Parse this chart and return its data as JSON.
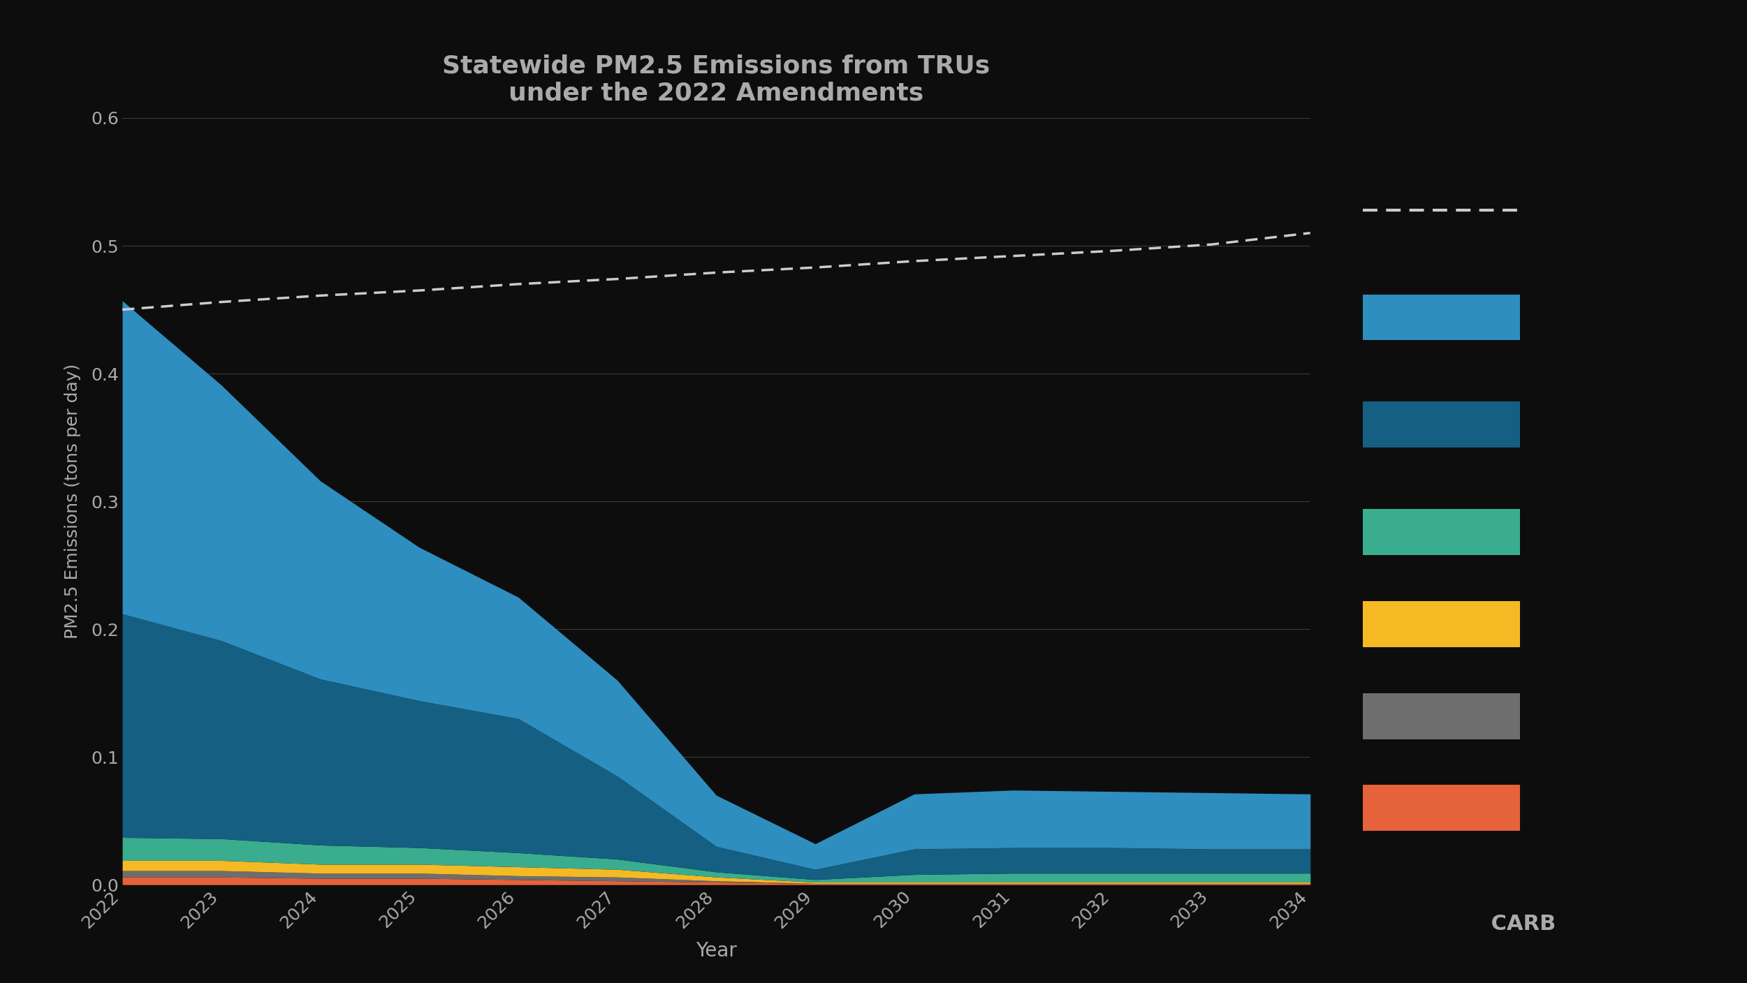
{
  "title": "Statewide PM2.5 Emissions from TRUs\nunder the 2022 Amendments",
  "xlabel": "Year",
  "ylabel": "PM2.5 Emissions (tons per day)",
  "background_color": "#0d0d0d",
  "text_color": "#aaaaaa",
  "grid_color": "#3a3a3a",
  "years": [
    2022,
    2023,
    2024,
    2025,
    2026,
    2027,
    2028,
    2029,
    2030,
    2031,
    2032,
    2033,
    2034
  ],
  "baseline": [
    0.45,
    0.456,
    0.461,
    0.465,
    0.47,
    0.474,
    0.479,
    0.483,
    0.488,
    0.492,
    0.496,
    0.501,
    0.51
  ],
  "series_order": [
    "orange",
    "gray",
    "yellow",
    "teal",
    "dark_blue",
    "light_blue"
  ],
  "series": {
    "light_blue": [
      0.245,
      0.2,
      0.155,
      0.12,
      0.095,
      0.075,
      0.04,
      0.02,
      0.043,
      0.045,
      0.044,
      0.044,
      0.043
    ],
    "dark_blue": [
      0.175,
      0.155,
      0.13,
      0.115,
      0.105,
      0.065,
      0.02,
      0.008,
      0.02,
      0.02,
      0.02,
      0.019,
      0.019
    ],
    "teal": [
      0.018,
      0.017,
      0.015,
      0.013,
      0.011,
      0.008,
      0.004,
      0.002,
      0.006,
      0.007,
      0.007,
      0.007,
      0.007
    ],
    "yellow": [
      0.008,
      0.008,
      0.007,
      0.007,
      0.007,
      0.006,
      0.003,
      0.001,
      0.001,
      0.001,
      0.001,
      0.001,
      0.001
    ],
    "gray": [
      0.005,
      0.005,
      0.004,
      0.004,
      0.003,
      0.003,
      0.001,
      0.0,
      0.0,
      0.0,
      0.0,
      0.0,
      0.0
    ],
    "orange": [
      0.006,
      0.006,
      0.005,
      0.005,
      0.004,
      0.003,
      0.002,
      0.001,
      0.001,
      0.001,
      0.001,
      0.001,
      0.001
    ]
  },
  "colors": {
    "light_blue": "#2e8ec0",
    "dark_blue": "#155f82",
    "teal": "#3aad8e",
    "yellow": "#f5b924",
    "gray": "#6e6e6e",
    "orange": "#e5623a"
  },
  "ylim": [
    0,
    0.6
  ],
  "yticks": [
    0.0,
    0.1,
    0.2,
    0.3,
    0.4,
    0.5,
    0.6
  ]
}
